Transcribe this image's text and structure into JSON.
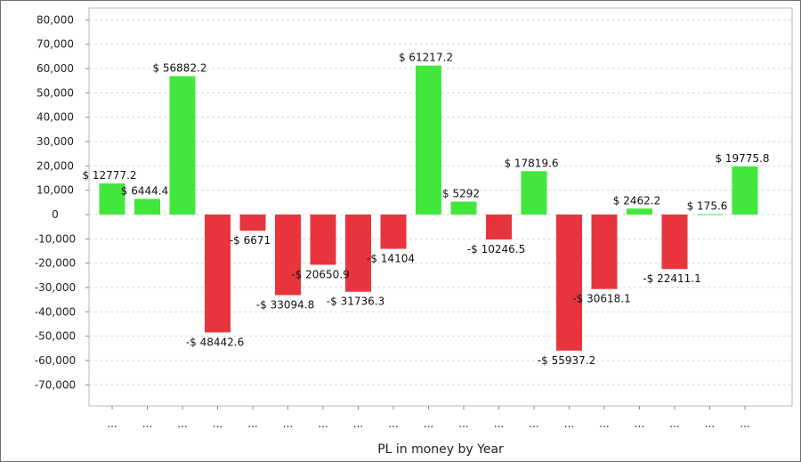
{
  "chart_data": {
    "type": "bar",
    "xlabel": "PL in money by Year",
    "ylabel": "",
    "ylim": [
      -80000,
      80000
    ],
    "yticks": [
      80000,
      70000,
      60000,
      50000,
      40000,
      30000,
      20000,
      10000,
      0,
      -10000,
      -20000,
      -30000,
      -40000,
      -50000,
      -60000,
      -70000
    ],
    "ytick_labels": [
      "80,000",
      "70,000",
      "60,000",
      "50,000",
      "40,000",
      "30,000",
      "20,000",
      "10,000",
      "0",
      "-10,000",
      "-20,000",
      "-30,000",
      "-40,000",
      "-50,000",
      "-60,000",
      "-70,000"
    ],
    "grid": true,
    "categories": [
      "...",
      "...",
      "...",
      "...",
      "...",
      "...",
      "...",
      "...",
      "...",
      "...",
      "...",
      "...",
      "...",
      "...",
      "...",
      "...",
      "...",
      "...",
      "..."
    ],
    "values": [
      12777.2,
      6444.4,
      56882.2,
      -48442.6,
      -6671,
      -33094.8,
      -20650.9,
      -31736.3,
      -14104,
      61217.2,
      5292,
      -10246.5,
      17819.6,
      -55937.2,
      -30618.1,
      2462.2,
      -22411.1,
      175.6,
      19775.8
    ],
    "data_labels": [
      "$ 12777.2",
      "$ 6444.4",
      "$ 56882.2",
      "-$ 48442.6",
      "-$ 6671",
      "-$ 33094.8",
      "-$ 20650.9",
      "-$ 31736.3",
      "-$ 14104",
      "$ 61217.2",
      "$ 5292",
      "-$ 10246.5",
      "$ 17819.6",
      "-$ 55937.2",
      "-$ 30618.1",
      "$ 2462.2",
      "-$ 22411.1",
      "$ 175.6",
      "$ 19775.8"
    ],
    "colors": {
      "positive": "#41e83b",
      "negative": "#e8353d",
      "grid": "#d9d9d9",
      "axis": "#8a8a8a"
    }
  }
}
